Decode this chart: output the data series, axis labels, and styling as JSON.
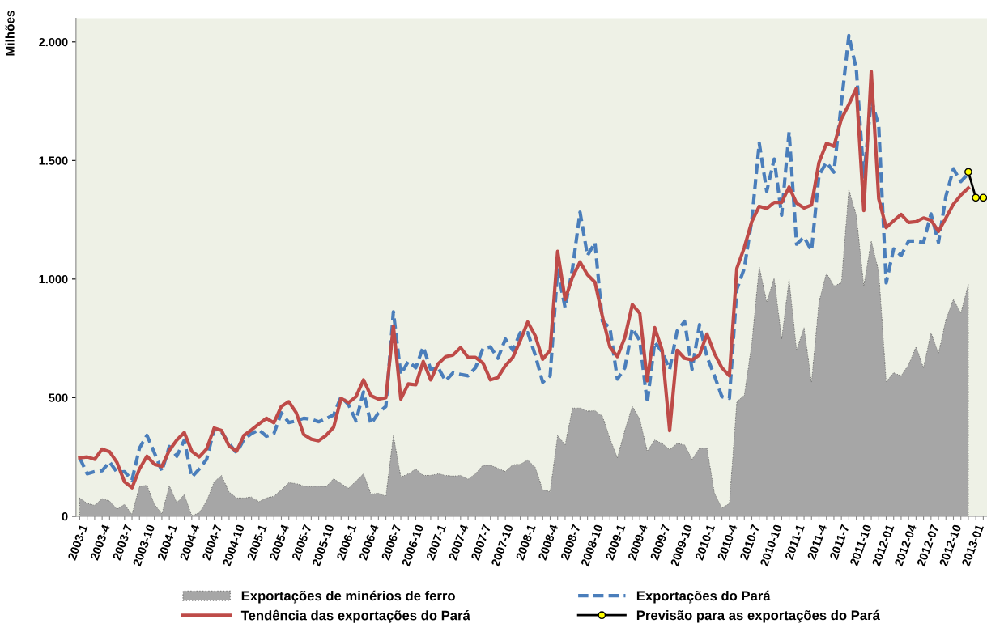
{
  "chart_data": {
    "type": "line",
    "ylabel": "Milhões",
    "categories": [
      "2003-1",
      null,
      null,
      "2003-4",
      null,
      null,
      "2003-7",
      null,
      null,
      "2003-10",
      null,
      null,
      "2004-1",
      null,
      null,
      "2004-4",
      null,
      null,
      "2004-7",
      null,
      null,
      "2004-10",
      null,
      null,
      "2005-1",
      null,
      null,
      "2005-4",
      null,
      null,
      "2005-7",
      null,
      null,
      "2005-10",
      null,
      null,
      "2006-1",
      null,
      null,
      "2006-4",
      null,
      null,
      "2006-7",
      null,
      null,
      "2006-10",
      null,
      null,
      "2007-1",
      null,
      null,
      "2007-4",
      null,
      null,
      "2007-7",
      null,
      null,
      "2007-10",
      null,
      null,
      "2008-1",
      null,
      null,
      "2008-4",
      null,
      null,
      "2008-7",
      null,
      null,
      "2008-10",
      null,
      null,
      "2009-1",
      null,
      null,
      "2009-4",
      null,
      null,
      "2009-7",
      null,
      null,
      "2009-10",
      null,
      null,
      "2010-1",
      null,
      null,
      "2010-4",
      null,
      null,
      "2010-7",
      null,
      null,
      "2010-10",
      null,
      null,
      "2011-1",
      null,
      null,
      "2011-4",
      null,
      null,
      "2011-7",
      null,
      null,
      "2011-10",
      null,
      null,
      "2012-01",
      null,
      null,
      "2012-04",
      null,
      null,
      "2012-07",
      null,
      null,
      "2012-10",
      null,
      null,
      "2013-01",
      null
    ],
    "ylim": [
      0,
      2100
    ],
    "yticks": [
      {
        "value": 0,
        "label": "0"
      },
      {
        "value": 500,
        "label": "500"
      },
      {
        "value": 1000,
        "label": "1.000"
      },
      {
        "value": 1500,
        "label": "1.500"
      },
      {
        "value": 2000,
        "label": "2.000"
      }
    ],
    "grid": false,
    "legend": "bottom",
    "series": [
      {
        "name": "Exportações de minérios de ferro",
        "type": "area",
        "color": "#a6a6a6",
        "values": [
          77,
          54,
          46,
          74,
          64,
          30,
          50,
          7,
          125,
          131,
          50,
          10,
          129,
          57,
          91,
          3,
          14,
          64,
          145,
          172,
          102,
          77,
          77,
          81,
          61,
          77,
          84,
          111,
          141,
          138,
          127,
          125,
          127,
          125,
          158,
          138,
          118,
          148,
          179,
          93,
          97,
          84,
          341,
          165,
          179,
          199,
          172,
          172,
          179,
          172,
          169,
          172,
          156,
          179,
          215,
          215,
          202,
          188,
          217,
          219,
          237,
          206,
          111,
          104,
          341,
          301,
          456,
          456,
          443,
          445,
          422,
          328,
          246,
          362,
          463,
          409,
          274,
          321,
          307,
          280,
          307,
          301,
          240,
          287,
          287,
          97,
          34,
          54,
          483,
          510,
          727,
          1052,
          903,
          1005,
          747,
          998,
          700,
          795,
          565,
          903,
          1025,
          971,
          984,
          1377,
          1269,
          971,
          1160,
          1032,
          567,
          605,
          592,
          639,
          714,
          626,
          774,
          686,
          829,
          914,
          856,
          978,
          null,
          null
        ]
      },
      {
        "name": "Exportações do Pará",
        "line_style": "dashed",
        "color": "#4a7ebb",
        "values": [
          246,
          179,
          188,
          192,
          229,
          185,
          188,
          152,
          287,
          341,
          267,
          190,
          294,
          253,
          321,
          165,
          199,
          240,
          368,
          355,
          307,
          267,
          324,
          348,
          364,
          337,
          348,
          436,
          395,
          402,
          413,
          409,
          398,
          412,
          427,
          504,
          470,
          402,
          524,
          389,
          436,
          463,
          862,
          598,
          653,
          626,
          714,
          619,
          626,
          571,
          605,
          598,
          592,
          626,
          707,
          714,
          666,
          747,
          700,
          774,
          774,
          680,
          565,
          592,
          1039,
          879,
          1045,
          1282,
          1099,
          1154,
          822,
          795,
          578,
          626,
          792,
          741,
          477,
          734,
          693,
          619,
          781,
          822,
          619,
          808,
          673,
          592,
          504,
          497,
          957,
          1045,
          1248,
          1573,
          1370,
          1506,
          1269,
          1621,
          1147,
          1177,
          1120,
          1438,
          1492,
          1451,
          1743,
          2027,
          1885,
          1431,
          1756,
          1648,
          984,
          1127,
          1099,
          1160,
          1160,
          1154,
          1275,
          1154,
          1350,
          1465,
          1411,
          1445,
          null,
          null
        ]
      },
      {
        "name": "Tendência das exportações do Pará",
        "line_style": "solid",
        "color": "#be4b48",
        "values": [
          246,
          250,
          240,
          283,
          272,
          226,
          145,
          120,
          199,
          253,
          219,
          210,
          278,
          321,
          353,
          274,
          250,
          284,
          372,
          361,
          296,
          274,
          341,
          364,
          389,
          413,
          394,
          463,
          483,
          436,
          344,
          325,
          318,
          341,
          375,
          497,
          479,
          504,
          575,
          508,
          494,
          500,
          802,
          494,
          558,
          554,
          653,
          575,
          643,
          673,
          680,
          711,
          670,
          670,
          646,
          575,
          585,
          635,
          670,
          741,
          819,
          761,
          662,
          700,
          1117,
          914,
          1009,
          1072,
          1018,
          987,
          842,
          714,
          673,
          754,
          892,
          856,
          571,
          795,
          700,
          361,
          700,
          666,
          659,
          680,
          768,
          686,
          626,
          592,
          1045,
          1133,
          1242,
          1307,
          1298,
          1323,
          1323,
          1388,
          1320,
          1300,
          1312,
          1492,
          1572,
          1560,
          1675,
          1736,
          1804,
          1289,
          1875,
          1339,
          1217,
          1246,
          1273,
          1239,
          1242,
          1258,
          1248,
          1201,
          1258,
          1316,
          1354,
          1384,
          null,
          null
        ]
      },
      {
        "name": "Previsão para as exportações do Pará",
        "line_style": "solid",
        "marker": "circle",
        "color": "#000000",
        "values": [
          null,
          null,
          null,
          null,
          null,
          null,
          null,
          null,
          null,
          null,
          null,
          null,
          null,
          null,
          null,
          null,
          null,
          null,
          null,
          null,
          null,
          null,
          null,
          null,
          null,
          null,
          null,
          null,
          null,
          null,
          null,
          null,
          null,
          null,
          null,
          null,
          null,
          null,
          null,
          null,
          null,
          null,
          null,
          null,
          null,
          null,
          null,
          null,
          null,
          null,
          null,
          null,
          null,
          null,
          null,
          null,
          null,
          null,
          null,
          null,
          null,
          null,
          null,
          null,
          null,
          null,
          null,
          null,
          null,
          null,
          null,
          null,
          null,
          null,
          null,
          null,
          null,
          null,
          null,
          null,
          null,
          null,
          null,
          null,
          null,
          null,
          null,
          null,
          null,
          null,
          null,
          null,
          null,
          null,
          null,
          null,
          null,
          null,
          null,
          null,
          null,
          null,
          null,
          null,
          null,
          null,
          null,
          null,
          null,
          null,
          null,
          null,
          null,
          null,
          null,
          null,
          null,
          null,
          null,
          1452,
          1343,
          1343
        ]
      }
    ]
  }
}
